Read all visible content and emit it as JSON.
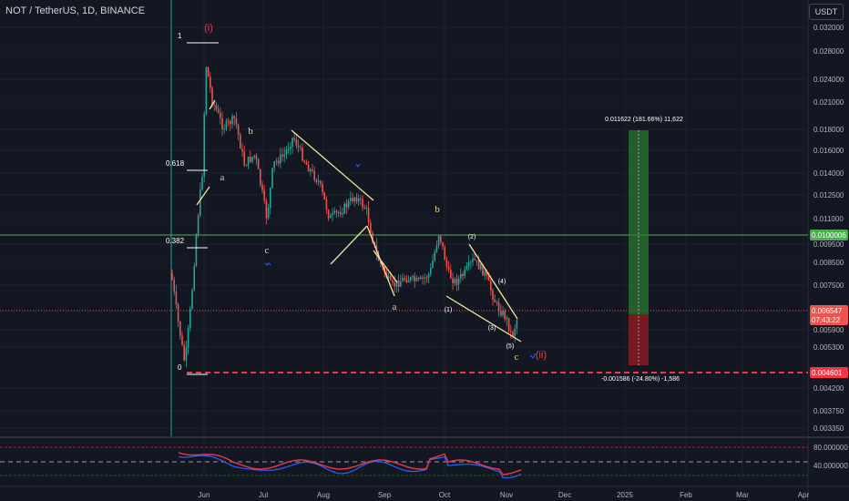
{
  "symbol_title": "NOT / TetherUS, 1D, BINANCE",
  "currency_button": "USDT",
  "colors": {
    "background": "#131722",
    "grid": "#1e222d",
    "up": "#26a69a",
    "down": "#ef5350",
    "wave_label": "#e8d18a",
    "wave_major": "#f23645",
    "target_zone": "#2e7d32",
    "stop_zone": "#b71c1c",
    "horizontal_line": "#4caf50",
    "stop_line": "#f23645"
  },
  "y_axis": {
    "ticks": [
      "0.032000",
      "0.028000",
      "0.024000",
      "0.021000",
      "0.018000",
      "0.016000",
      "0.014000",
      "0.012500",
      "0.011000",
      "0.009500",
      "0.008500",
      "0.007500",
      "0.005900",
      "0.005300",
      "0.004200",
      "0.003750",
      "0.003350"
    ],
    "price_tags": [
      {
        "label": "0.0100006",
        "kind": "line"
      },
      {
        "label": "0.006547",
        "sub": "07:43:22",
        "kind": "last"
      },
      {
        "label": "0.004601",
        "kind": "stop"
      }
    ]
  },
  "x_axis": {
    "ticks": [
      "Jun",
      "Jul",
      "Aug",
      "Sep",
      "Oct",
      "Nov",
      "Dec",
      "2025",
      "Feb",
      "Mar",
      "Apr"
    ]
  },
  "fib_labels": [
    "1",
    "0.618",
    "0.382",
    "0"
  ],
  "wave_labels": [
    "(i)",
    "a",
    "b",
    "c",
    "b",
    "a",
    "(2)",
    "(1)",
    "(4)",
    "(3)",
    "(5)",
    "c",
    "(ii)"
  ],
  "position_labels": {
    "target": "0.011622 (181.66%) 11,622",
    "stop": "-0.001586 (-24.80%) -1,586"
  },
  "indicator": {
    "ticks": [
      "80.000000",
      "40.000000"
    ]
  }
}
